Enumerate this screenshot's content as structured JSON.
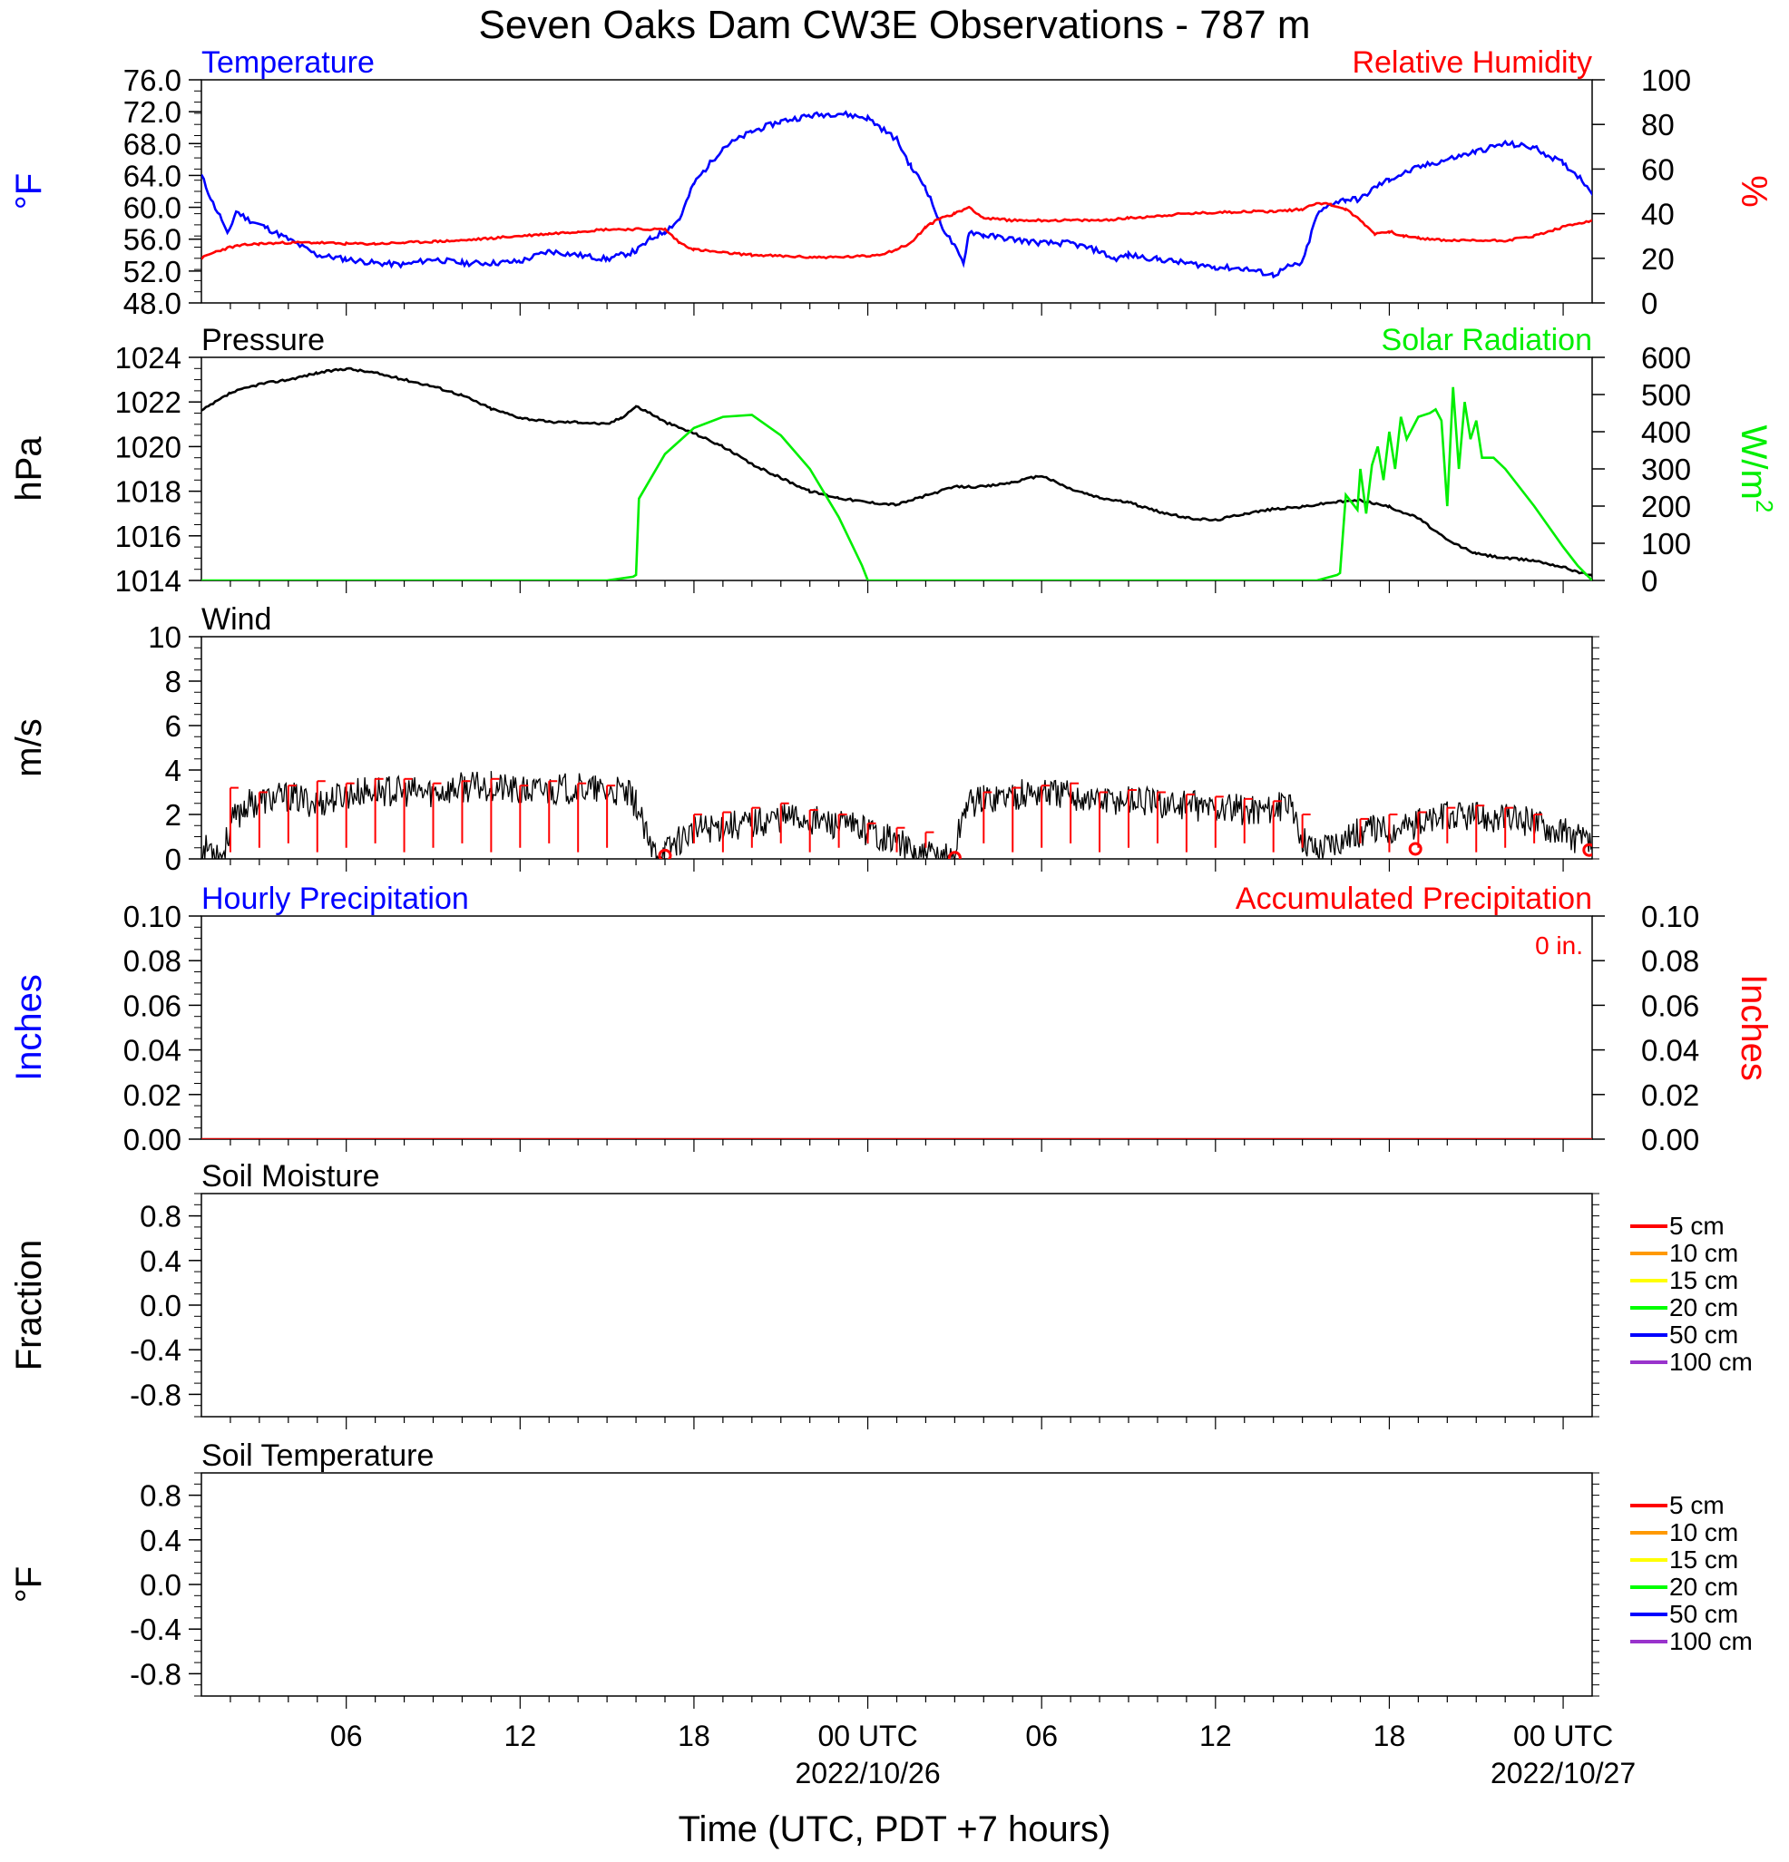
{
  "title": "Seven Oaks Dam CW3E Observations - 787 m",
  "x_axis": {
    "label": "Time (UTC, PDT +7 hours)",
    "range_hours": [
      0,
      48
    ],
    "ticks": [
      {
        "h": 5,
        "label": "06"
      },
      {
        "h": 11,
        "label": "12"
      },
      {
        "h": 17,
        "label": "18"
      },
      {
        "h": 23,
        "label": "00 UTC",
        "sub": "2022/10/26"
      },
      {
        "h": 29,
        "label": "06"
      },
      {
        "h": 35,
        "label": "12"
      },
      {
        "h": 41,
        "label": "18"
      },
      {
        "h": 47,
        "label": "00 UTC",
        "sub": "2022/10/27"
      }
    ]
  },
  "chart_data": [
    {
      "type": "line",
      "panel": "temperature_humidity",
      "left_title": "Temperature",
      "right_title": "Relative Humidity",
      "ylabel_left": "°F",
      "ylabel_right": "%",
      "ylim_left": [
        48,
        76
      ],
      "ylim_right": [
        0,
        100
      ],
      "yticks_left": [
        "48.0",
        "52.0",
        "56.0",
        "60.0",
        "64.0",
        "68.0",
        "72.0",
        "76.0"
      ],
      "yticks_right": [
        "0",
        "20",
        "40",
        "60",
        "80",
        "100"
      ],
      "colors": {
        "left": "#0000ff",
        "right": "#ff0000"
      },
      "series": [
        {
          "name": "Temperature",
          "axis": "left",
          "color": "#0000ff",
          "x": [
            0,
            0.4,
            0.7,
            0.9,
            1.2,
            1.6,
            2.2,
            3,
            4,
            5,
            6,
            7,
            8,
            9,
            10,
            11,
            12,
            13,
            14,
            15,
            15.5,
            16,
            16.5,
            17,
            18,
            19,
            20,
            21,
            22,
            23,
            24,
            24.5,
            25,
            25.5,
            26,
            26.3,
            26.5,
            27,
            28,
            29,
            30,
            31,
            31.5,
            32,
            33,
            34,
            35,
            36,
            37,
            37.5,
            38,
            38.5,
            39,
            39.5,
            40,
            40.5,
            41,
            42,
            43,
            44,
            45,
            46,
            47,
            47.5,
            48
          ],
          "y": [
            64.0,
            60.5,
            58.5,
            56.5,
            59.5,
            58.5,
            57.5,
            56.0,
            54.0,
            53.5,
            53.0,
            52.8,
            53.5,
            53.0,
            53.0,
            53.2,
            54.5,
            54.0,
            53.5,
            54.5,
            56.0,
            57.0,
            58.5,
            63.0,
            67.5,
            69.5,
            70.8,
            71.5,
            71.8,
            71.2,
            68.5,
            65.0,
            62.5,
            58.0,
            55.0,
            53.0,
            57.0,
            56.5,
            56.0,
            55.5,
            55.5,
            54.5,
            53.5,
            54.0,
            53.5,
            53.0,
            52.5,
            52.3,
            51.5,
            52.5,
            53.0,
            59.0,
            60.5,
            61.0,
            61.0,
            62.5,
            63.5,
            65.0,
            66.0,
            67.0,
            68.0,
            67.5,
            65.5,
            64.0,
            62.0
          ]
        },
        {
          "name": "Relative Humidity",
          "axis": "right",
          "color": "#ff0000",
          "x": [
            0,
            0.5,
            1,
            1.5,
            2,
            3,
            4,
            5,
            6,
            7,
            8,
            9,
            10,
            11,
            12,
            13,
            14,
            15,
            16,
            16.5,
            17,
            18,
            19,
            20,
            21,
            22,
            23,
            23.5,
            24,
            24.5,
            25,
            25.5,
            26,
            26.5,
            27,
            28,
            29,
            30,
            31,
            32,
            33,
            34,
            35,
            36,
            37,
            38,
            38.5,
            39,
            39.5,
            40,
            40.5,
            41,
            41.5,
            42,
            43,
            44,
            45,
            46,
            47,
            48
          ],
          "y": [
            20,
            23,
            25,
            26,
            26.5,
            27,
            27,
            26.5,
            26.5,
            27,
            27.5,
            28,
            29,
            30,
            31,
            32,
            33,
            33,
            33,
            27,
            24,
            22.5,
            21.5,
            21,
            20.5,
            20.5,
            21,
            22,
            24,
            27,
            34,
            38,
            40,
            43,
            38,
            37,
            37,
            37,
            37,
            38,
            39,
            40,
            40.5,
            41,
            41,
            42,
            45,
            44,
            42,
            37,
            31,
            32,
            30,
            29,
            28,
            28,
            28,
            30,
            34,
            37
          ]
        }
      ]
    },
    {
      "type": "line",
      "panel": "pressure_solar",
      "left_title": "Pressure",
      "right_title": "Solar Radiation",
      "ylabel_left": "hPa",
      "ylabel_right": "W/m",
      "ylabel_right_sup": "2",
      "ylim_left": [
        1014,
        1024
      ],
      "ylim_right": [
        0,
        600
      ],
      "yticks_left": [
        "1014",
        "1016",
        "1018",
        "1020",
        "1022",
        "1024"
      ],
      "yticks_right": [
        "0",
        "100",
        "200",
        "300",
        "400",
        "500",
        "600"
      ],
      "colors": {
        "left": "#000000",
        "right": "#00ee00"
      },
      "series": [
        {
          "name": "Pressure",
          "axis": "left",
          "color": "#000000",
          "x": [
            0,
            1,
            2,
            3,
            4,
            5,
            6,
            7,
            8,
            9,
            10,
            11,
            12,
            13,
            14,
            14.5,
            15,
            15.5,
            16,
            17,
            18,
            19,
            20,
            21,
            22,
            23,
            24,
            25,
            26,
            27,
            28,
            29,
            30,
            31,
            32,
            33,
            34,
            35,
            36,
            37,
            38,
            39,
            40,
            41,
            42,
            43,
            44,
            45,
            46,
            47,
            48
          ],
          "y": [
            1021.6,
            1022.4,
            1022.8,
            1023.0,
            1023.3,
            1023.5,
            1023.3,
            1023.0,
            1022.7,
            1022.3,
            1021.7,
            1021.3,
            1021.1,
            1021.1,
            1021.0,
            1021.3,
            1021.8,
            1021.5,
            1021.1,
            1020.6,
            1020.0,
            1019.2,
            1018.6,
            1018.0,
            1017.7,
            1017.5,
            1017.4,
            1017.8,
            1018.2,
            1018.2,
            1018.4,
            1018.7,
            1018.1,
            1017.7,
            1017.5,
            1017.1,
            1016.8,
            1016.7,
            1017.0,
            1017.2,
            1017.3,
            1017.5,
            1017.6,
            1017.3,
            1016.8,
            1015.8,
            1015.2,
            1015.0,
            1014.9,
            1014.6,
            1014.2
          ]
        },
        {
          "name": "Solar Radiation",
          "axis": "right",
          "color": "#00ee00",
          "x": [
            0,
            14,
            14.9,
            15.0,
            15.1,
            16,
            17,
            18,
            19,
            20,
            21,
            22,
            22.8,
            23.0,
            23.6,
            24,
            38.5,
            39.2,
            39.3,
            39.5,
            39.9,
            40,
            40.2,
            40.4,
            40.6,
            40.8,
            41,
            41.2,
            41.4,
            41.6,
            42,
            42.4,
            42.6,
            42.8,
            43.0,
            43.2,
            43.4,
            43.6,
            43.8,
            44.0,
            44.2,
            44.6,
            45,
            46,
            47,
            47.5,
            48
          ],
          "y": [
            0,
            0,
            10,
            15,
            220,
            340,
            410,
            440,
            445,
            390,
            300,
            170,
            40,
            0,
            0,
            0,
            0,
            15,
            20,
            230,
            190,
            300,
            180,
            310,
            360,
            270,
            400,
            300,
            440,
            380,
            440,
            450,
            460,
            430,
            200,
            520,
            300,
            480,
            380,
            430,
            330,
            330,
            300,
            200,
            90,
            40,
            0
          ]
        }
      ]
    },
    {
      "type": "line",
      "panel": "wind",
      "left_title": "Wind",
      "ylabel_left": "m/s",
      "ylim_left": [
        0,
        10
      ],
      "yticks_left": [
        "0",
        "2",
        "4",
        "6",
        "8",
        "10"
      ],
      "series": [
        {
          "name": "Wind",
          "axis": "left",
          "color": "#000000",
          "x": [
            0,
            0.3,
            0.6,
            0.7,
            1,
            1.5,
            2,
            3,
            4,
            5,
            6,
            7,
            8,
            9,
            10,
            11,
            12,
            13,
            14,
            14.5,
            14.8,
            15.0,
            15.5,
            16,
            16.4,
            17,
            18,
            19,
            20,
            21,
            22,
            23,
            24,
            24.6,
            25,
            25.5,
            26,
            26.1,
            26.4,
            27,
            28,
            29,
            30,
            31,
            32,
            33,
            34,
            35,
            36,
            37,
            37.5,
            38,
            38.5,
            39,
            40,
            41,
            42,
            43,
            44,
            45,
            46,
            47,
            48
          ],
          "y": [
            0.2,
            0.6,
            0.3,
            0.0,
            1.5,
            2.4,
            2.6,
            2.8,
            2.5,
            2.9,
            3.1,
            3.0,
            3.0,
            3.2,
            3.3,
            3.0,
            3.1,
            3.2,
            3.0,
            3.0,
            2.8,
            2.5,
            0.4,
            0.3,
            0.8,
            1.3,
            1.5,
            1.6,
            1.9,
            1.8,
            1.5,
            1.3,
            0.8,
            0.2,
            0.1,
            0.1,
            0.1,
            1.0,
            2.5,
            2.7,
            2.9,
            3.0,
            2.9,
            2.6,
            2.7,
            2.5,
            2.4,
            2.3,
            2.2,
            2.3,
            2.4,
            1.0,
            0.4,
            0.8,
            1.2,
            1.4,
            1.6,
            1.9,
            1.9,
            1.8,
            1.7,
            1.2,
            0.6
          ]
        },
        {
          "name": "Wind barbs",
          "axis": "left",
          "color": "#ff0000",
          "x": [
            1,
            2,
            3,
            4,
            5,
            6,
            7,
            8,
            9,
            10,
            11,
            12,
            13,
            14,
            17,
            18,
            19,
            20,
            21,
            22,
            23,
            24,
            25,
            27,
            28,
            29,
            30,
            31,
            32,
            33,
            34,
            35,
            36,
            37,
            38,
            40,
            41,
            42,
            43,
            44,
            45,
            46
          ],
          "y": [
            3.2,
            3.0,
            3.3,
            3.5,
            3.4,
            3.6,
            3.6,
            3.4,
            3.5,
            3.6,
            3.3,
            3.5,
            3.4,
            3.3,
            2.0,
            2.1,
            2.3,
            2.5,
            2.2,
            2.0,
            1.6,
            1.4,
            1.2,
            3.0,
            3.2,
            3.3,
            3.4,
            3.0,
            3.1,
            3.0,
            2.9,
            2.8,
            2.7,
            2.6,
            2.0,
            1.8,
            2.0,
            2.1,
            2.3,
            2.4,
            2.3,
            2.0
          ]
        },
        {
          "name": "Calm",
          "axis": "left",
          "color": "#ff0000",
          "x": [
            16,
            26,
            41.9,
            47.9
          ],
          "y": [
            0.15,
            0.05,
            0.45,
            0.4
          ]
        }
      ]
    },
    {
      "type": "line",
      "panel": "precipitation",
      "left_title": "Hourly Precipitation",
      "right_title": "Accumulated Precipitation",
      "annotation": "0 in.",
      "ylabel_left": "Inches",
      "ylabel_right": "Inches",
      "ylim_left": [
        0,
        0.1
      ],
      "ylim_right": [
        0,
        0.1
      ],
      "yticks_left": [
        "0.00",
        "0.02",
        "0.04",
        "0.06",
        "0.08",
        "0.10"
      ],
      "yticks_right": [
        "0.00",
        "0.02",
        "0.04",
        "0.06",
        "0.08",
        "0.10"
      ],
      "colors": {
        "left": "#0000ff",
        "right": "#ff0000"
      },
      "series": [
        {
          "name": "Accumulated Precipitation",
          "axis": "right",
          "color": "#cc0000",
          "x": [
            0,
            48
          ],
          "y": [
            0,
            0
          ]
        }
      ]
    },
    {
      "type": "line",
      "panel": "soil_moisture",
      "left_title": "Soil Moisture",
      "ylabel_left": "Fraction",
      "ylim_left": [
        -1,
        1
      ],
      "yticks_left": [
        "-0.8",
        "-0.4",
        "0.0",
        "0.4",
        "0.8"
      ],
      "legend": [
        "5 cm",
        "10 cm",
        "15 cm",
        "20 cm",
        "50 cm",
        "100 cm"
      ],
      "legend_colors": [
        "#ff0000",
        "#ff9900",
        "#ffff00",
        "#00ff00",
        "#0000ff",
        "#9933cc"
      ],
      "series": []
    },
    {
      "type": "line",
      "panel": "soil_temperature",
      "left_title": "Soil Temperature",
      "ylabel_left": "°F",
      "ylim_left": [
        -1,
        1
      ],
      "yticks_left": [
        "-0.8",
        "-0.4",
        "0.0",
        "0.4",
        "0.8"
      ],
      "legend": [
        "5 cm",
        "10 cm",
        "15 cm",
        "20 cm",
        "50 cm",
        "100 cm"
      ],
      "legend_colors": [
        "#ff0000",
        "#ff9900",
        "#ffff00",
        "#00ff00",
        "#0000ff",
        "#9933cc"
      ],
      "series": []
    }
  ]
}
